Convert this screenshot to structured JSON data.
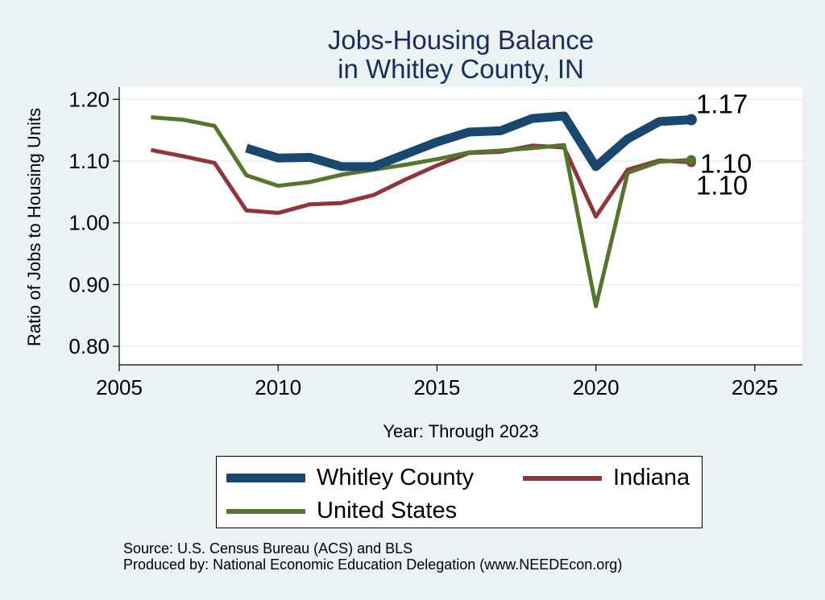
{
  "chart_data": {
    "type": "line",
    "title": [
      "Jobs-Housing Balance",
      "in Whitley County, IN"
    ],
    "xlabel": "Year: Through 2023",
    "ylabel": "Ratio of Jobs to Housing Units",
    "xlim": [
      2005,
      2026.5
    ],
    "ylim": [
      0.77,
      1.22
    ],
    "xticks": [
      "2005",
      "2010",
      "2015",
      "2020",
      "2025"
    ],
    "yticks": [
      "0.80",
      "0.90",
      "1.00",
      "1.10",
      "1.20"
    ],
    "grid": "horizontal",
    "legend_position": "bottom",
    "series": [
      {
        "name": "Whitley County",
        "color": "#1a476f",
        "x": [
          2009,
          2010,
          2011,
          2012,
          2013,
          2014,
          2015,
          2016,
          2017,
          2018,
          2019,
          2020,
          2021,
          2022,
          2023
        ],
        "y": [
          1.121,
          1.105,
          1.106,
          1.091,
          1.091,
          1.111,
          1.131,
          1.147,
          1.149,
          1.169,
          1.173,
          1.091,
          1.136,
          1.164,
          1.167
        ],
        "end_label": "1.17"
      },
      {
        "name": "Indiana",
        "color": "#90353b",
        "x": [
          2006,
          2007,
          2008,
          2009,
          2010,
          2011,
          2012,
          2013,
          2014,
          2015,
          2016,
          2017,
          2018,
          2019,
          2020,
          2021,
          2022,
          2023
        ],
        "y": [
          1.118,
          1.108,
          1.097,
          1.02,
          1.016,
          1.03,
          1.032,
          1.045,
          1.07,
          1.093,
          1.113,
          1.115,
          1.125,
          1.122,
          1.01,
          1.086,
          1.101,
          1.098
        ],
        "end_label": "1.10"
      },
      {
        "name": "United States",
        "color": "#55752f",
        "x": [
          2006,
          2007,
          2008,
          2009,
          2010,
          2011,
          2012,
          2013,
          2014,
          2015,
          2016,
          2017,
          2018,
          2019,
          2020,
          2021,
          2022,
          2023
        ],
        "y": [
          1.171,
          1.167,
          1.157,
          1.077,
          1.06,
          1.066,
          1.078,
          1.086,
          1.094,
          1.103,
          1.114,
          1.117,
          1.121,
          1.126,
          0.865,
          1.081,
          1.099,
          1.102
        ],
        "end_label": "1.10"
      }
    ]
  },
  "legend": {
    "items": [
      "Whitley County",
      "Indiana",
      "United States"
    ]
  },
  "source": {
    "line1": "Source: U.S. Census Bureau (ACS) and BLS",
    "line2": "Produced by: National Economic Education Delegation (www.NEEDEcon.org)"
  }
}
